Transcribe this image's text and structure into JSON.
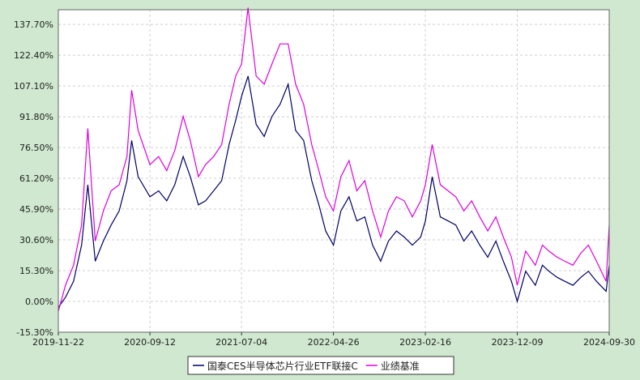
{
  "chart_data": {
    "type": "line",
    "title": "",
    "xlabel": "",
    "ylabel": "",
    "x_ticks": [
      "2019-11-22",
      "2020-09-12",
      "2021-07-04",
      "2022-04-26",
      "2023-02-16",
      "2023-12-09",
      "2024-09-30"
    ],
    "y_ticks": [
      "137.70%",
      "122.40%",
      "107.10%",
      "91.80%",
      "76.50%",
      "61.20%",
      "45.90%",
      "30.60%",
      "15.30%",
      "0.00%",
      "-15.30%"
    ],
    "ylim": [
      -15.3,
      145
    ],
    "xlim": [
      "2019-11-22",
      "2024-09-30"
    ],
    "grid": true,
    "legend_position": "bottom-center",
    "series": [
      {
        "name": "国泰CES半导体芯片行业ETF联接C",
        "color": "#000066",
        "x": [
          "2019-11-22",
          "2019-12-15",
          "2020-01-10",
          "2020-02-05",
          "2020-02-25",
          "2020-03-20",
          "2020-04-15",
          "2020-05-10",
          "2020-06-05",
          "2020-06-30",
          "2020-07-15",
          "2020-08-05",
          "2020-09-12",
          "2020-10-10",
          "2020-11-05",
          "2020-12-01",
          "2020-12-28",
          "2021-01-20",
          "2021-02-15",
          "2021-03-10",
          "2021-04-05",
          "2021-05-01",
          "2021-05-25",
          "2021-06-15",
          "2021-07-04",
          "2021-07-25",
          "2021-08-20",
          "2021-09-15",
          "2021-10-10",
          "2021-11-05",
          "2021-12-01",
          "2021-12-25",
          "2022-01-20",
          "2022-02-15",
          "2022-03-10",
          "2022-04-01",
          "2022-04-26",
          "2022-05-20",
          "2022-06-15",
          "2022-07-10",
          "2022-08-05",
          "2022-08-30",
          "2022-09-25",
          "2022-10-20",
          "2022-11-15",
          "2022-12-10",
          "2023-01-05",
          "2023-02-01",
          "2023-02-16",
          "2023-03-10",
          "2023-04-05",
          "2023-04-30",
          "2023-05-25",
          "2023-06-20",
          "2023-07-15",
          "2023-08-10",
          "2023-09-05",
          "2023-10-01",
          "2023-10-25",
          "2023-11-20",
          "2023-12-09",
          "2024-01-05",
          "2024-02-05",
          "2024-02-28",
          "2024-03-20",
          "2024-04-15",
          "2024-05-10",
          "2024-06-05",
          "2024-07-01",
          "2024-07-25",
          "2024-08-20",
          "2024-09-20",
          "2024-09-30"
        ],
        "values": [
          -3,
          2,
          10,
          28,
          58,
          20,
          30,
          38,
          45,
          60,
          80,
          62,
          52,
          55,
          50,
          58,
          72,
          62,
          48,
          50,
          55,
          60,
          78,
          90,
          102,
          112,
          88,
          82,
          92,
          98,
          108,
          85,
          80,
          60,
          48,
          35,
          28,
          45,
          52,
          40,
          42,
          28,
          20,
          30,
          35,
          32,
          28,
          32,
          40,
          62,
          42,
          40,
          38,
          30,
          35,
          28,
          22,
          30,
          20,
          10,
          0,
          15,
          8,
          18,
          15,
          12,
          10,
          8,
          12,
          15,
          10,
          5,
          18
        ]
      },
      {
        "name": "业绩基准",
        "color": "#dd00dd",
        "x": [
          "2019-11-22",
          "2019-12-15",
          "2020-01-10",
          "2020-02-05",
          "2020-02-25",
          "2020-03-20",
          "2020-04-15",
          "2020-05-10",
          "2020-06-05",
          "2020-06-30",
          "2020-07-15",
          "2020-08-05",
          "2020-09-12",
          "2020-10-10",
          "2020-11-05",
          "2020-12-01",
          "2020-12-28",
          "2021-01-20",
          "2021-02-15",
          "2021-03-10",
          "2021-04-05",
          "2021-05-01",
          "2021-05-25",
          "2021-06-15",
          "2021-07-04",
          "2021-07-25",
          "2021-08-20",
          "2021-09-15",
          "2021-10-10",
          "2021-11-05",
          "2021-12-01",
          "2021-12-25",
          "2022-01-20",
          "2022-02-15",
          "2022-03-10",
          "2022-04-01",
          "2022-04-26",
          "2022-05-20",
          "2022-06-15",
          "2022-07-10",
          "2022-08-05",
          "2022-08-30",
          "2022-09-25",
          "2022-10-20",
          "2022-11-15",
          "2022-12-10",
          "2023-01-05",
          "2023-02-01",
          "2023-02-16",
          "2023-03-10",
          "2023-04-05",
          "2023-04-30",
          "2023-05-25",
          "2023-06-20",
          "2023-07-15",
          "2023-08-10",
          "2023-09-05",
          "2023-10-01",
          "2023-10-25",
          "2023-11-20",
          "2023-12-09",
          "2024-01-05",
          "2024-02-05",
          "2024-02-28",
          "2024-03-20",
          "2024-04-15",
          "2024-05-10",
          "2024-06-05",
          "2024-07-01",
          "2024-07-25",
          "2024-08-20",
          "2024-09-20",
          "2024-09-30"
        ],
        "values": [
          -5,
          8,
          18,
          38,
          86,
          30,
          45,
          55,
          58,
          72,
          105,
          85,
          68,
          72,
          65,
          75,
          92,
          80,
          62,
          68,
          72,
          78,
          98,
          112,
          118,
          146,
          112,
          108,
          118,
          128,
          128,
          108,
          98,
          78,
          65,
          52,
          45,
          62,
          70,
          55,
          60,
          45,
          32,
          45,
          52,
          50,
          42,
          50,
          58,
          78,
          58,
          55,
          52,
          45,
          50,
          42,
          35,
          42,
          32,
          22,
          8,
          25,
          18,
          28,
          25,
          22,
          20,
          18,
          24,
          28,
          20,
          10,
          38
        ]
      }
    ]
  }
}
